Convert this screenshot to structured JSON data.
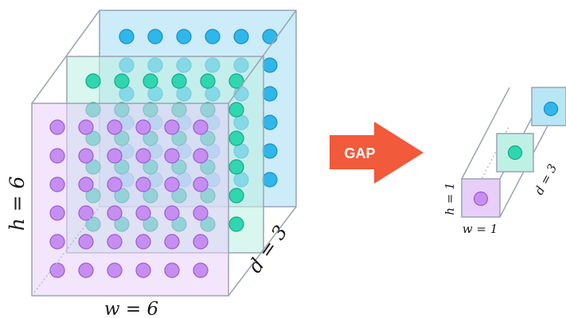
{
  "colors": {
    "purple": "#c68ef0",
    "purple_face": "#e7cff9",
    "green": "#2fd6b0",
    "green_face": "#bff0e4",
    "blue": "#2fb6ea",
    "blue_face": "#b9e6f5",
    "edge": "#9aa4b6",
    "arrow": "#f15a3a"
  },
  "left_block": {
    "h_label": "h = 6",
    "w_label": "w = 6",
    "d_label": "d = 3",
    "grid_rows": 6,
    "grid_cols": 6,
    "depth": 3
  },
  "arrow": {
    "label": "GAP"
  },
  "right_block": {
    "h_label": "h = 1",
    "w_label": "w = 1",
    "d_label": "d = 3"
  }
}
